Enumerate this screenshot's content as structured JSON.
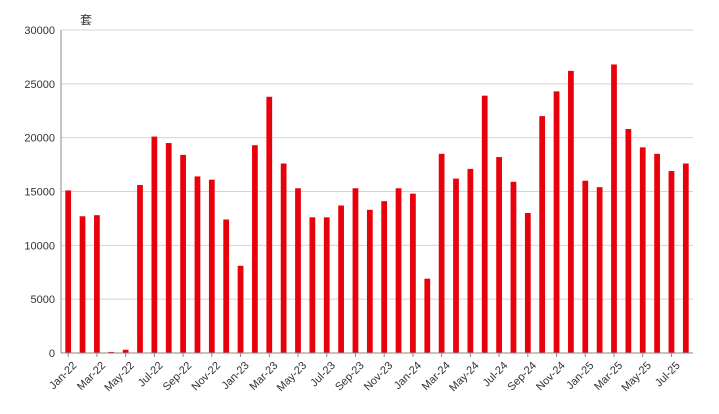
{
  "chart_data": {
    "type": "bar",
    "unit_label": "套",
    "categories": [
      "Jan-22",
      "Feb-22",
      "Mar-22",
      "Apr-22",
      "May-22",
      "Jun-22",
      "Jul-22",
      "Aug-22",
      "Sep-22",
      "Oct-22",
      "Nov-22",
      "Dec-22",
      "Jan-23",
      "Feb-23",
      "Mar-23",
      "Apr-23",
      "May-23",
      "Jun-23",
      "Jul-23",
      "Aug-23",
      "Sep-23",
      "Oct-23",
      "Nov-23",
      "Dec-23",
      "Jan-24",
      "Feb-24",
      "Mar-24",
      "Apr-24",
      "May-24",
      "Jun-24",
      "Jul-24",
      "Aug-24",
      "Sep-24",
      "Oct-24",
      "Nov-24",
      "Dec-24",
      "Jan-25",
      "Feb-25",
      "Mar-25",
      "Apr-25",
      "May-25",
      "Jun-25",
      "Jul-25",
      "Aug-25"
    ],
    "x_tick_labels": [
      "Jan-22",
      "Mar-22",
      "May-22",
      "Jul-22",
      "Sep-22",
      "Nov-22",
      "Jan-23",
      "Mar-23",
      "May-23",
      "Jul-23",
      "Sep-23",
      "Nov-23",
      "Jan-24",
      "Mar-24",
      "May-24",
      "Jul-24",
      "Sep-24",
      "Nov-24",
      "Jan-25",
      "Mar-25",
      "May-25",
      "Jul-25"
    ],
    "values": [
      15100,
      12700,
      12800,
      100,
      300,
      15600,
      20100,
      19500,
      18400,
      16400,
      16100,
      12400,
      8100,
      19300,
      23800,
      17600,
      15300,
      12600,
      12600,
      13700,
      15300,
      13300,
      14100,
      15300,
      14800,
      6900,
      18500,
      16200,
      17100,
      23900,
      18200,
      15900,
      13000,
      22000,
      24300,
      26200,
      16000,
      15400,
      26800,
      20800,
      19100,
      18500,
      16900,
      17600
    ],
    "y_ticks": [
      0,
      5000,
      10000,
      15000,
      20000,
      25000,
      30000
    ],
    "ylim": [
      0,
      30000
    ],
    "grid": true,
    "bar_color": "#e8000b",
    "grid_color": "#d4d4d4",
    "axis_color": "#888888"
  }
}
